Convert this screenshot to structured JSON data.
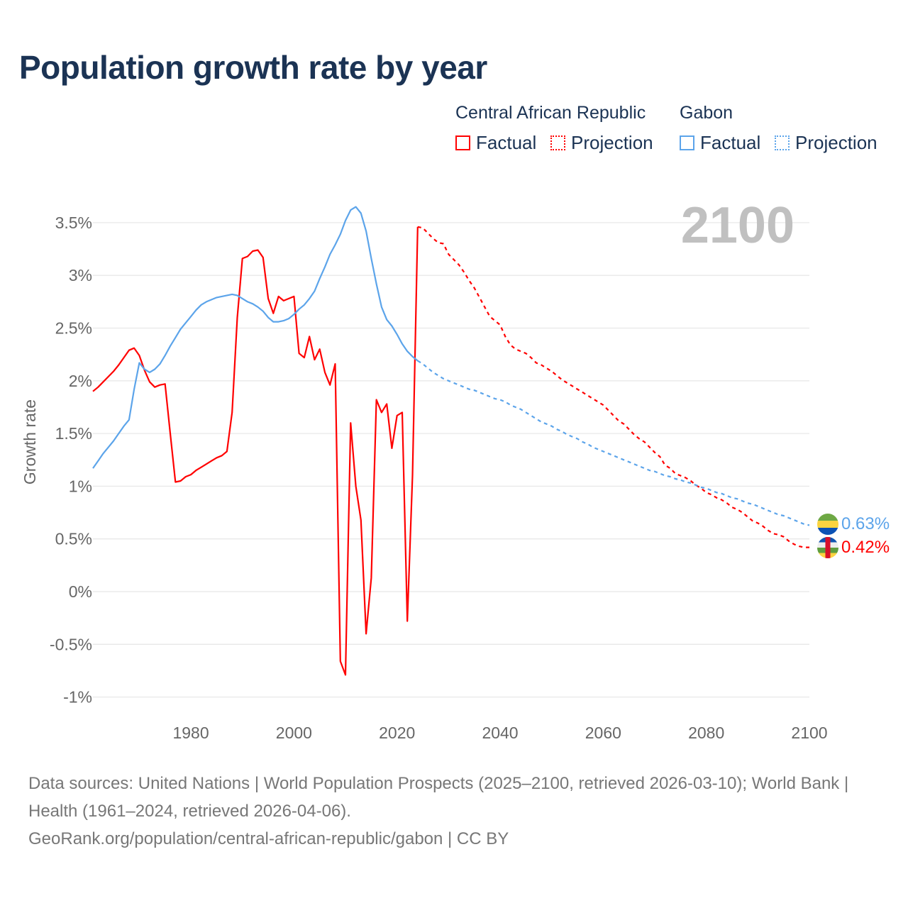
{
  "title": "Population growth rate by year",
  "legend": {
    "countries": [
      {
        "name": "Central African Republic",
        "color": "#ff0000",
        "factual_label": "Factual",
        "projection_label": "Projection"
      },
      {
        "name": "Gabon",
        "color": "#5ca4ea",
        "factual_label": "Factual",
        "projection_label": "Projection"
      }
    ]
  },
  "year_label": "2100",
  "footer": {
    "sources": "Data sources: United Nations | World Population Prospects (2025–2100, retrieved 2026-03-10); World Bank | Health (1961–2024, retrieved 2026-04-06).",
    "attribution": "GeoRank.org/population/central-african-republic/gabon | CC BY"
  },
  "chart_data": {
    "type": "line",
    "title": "Population growth rate by year",
    "xlabel": "",
    "ylabel": "Growth rate",
    "xlim": [
      1961,
      2100
    ],
    "ylim": [
      -1.2,
      3.8
    ],
    "x_ticks": [
      1980,
      2000,
      2020,
      2040,
      2060,
      2080,
      2100
    ],
    "x_tick_labels": [
      "1980",
      "2000",
      "2020",
      "2040",
      "2060",
      "2080",
      "2100"
    ],
    "y_ticks": [
      -1,
      -0.5,
      0,
      0.5,
      1,
      1.5,
      2,
      2.5,
      3,
      3.5
    ],
    "y_tick_labels": [
      "-1%",
      "-0.5%",
      "0%",
      "0.5%",
      "1%",
      "1.5%",
      "2%",
      "2.5%",
      "3%",
      "3.5%"
    ],
    "grid": true,
    "legend_position": "top-right",
    "series": [
      {
        "name": "Central African Republic",
        "kind": "Factual",
        "style": "solid",
        "color": "#ff0000",
        "start_year": 1961,
        "values": [
          1.9,
          1.94,
          1.99,
          2.04,
          2.09,
          2.15,
          2.22,
          2.29,
          2.31,
          2.24,
          2.1,
          1.99,
          1.94,
          1.96,
          1.97,
          1.5,
          1.04,
          1.05,
          1.09,
          1.11,
          1.15,
          1.18,
          1.21,
          1.24,
          1.27,
          1.29,
          1.33,
          1.7,
          2.6,
          3.16,
          3.18,
          3.23,
          3.24,
          3.17,
          2.78,
          2.64,
          2.8,
          2.76,
          2.78,
          2.8,
          2.26,
          2.22,
          2.42,
          2.2,
          2.3,
          2.08,
          1.96,
          2.16,
          -0.66,
          -0.79,
          1.6,
          1.0,
          0.68,
          -0.4,
          0.13,
          1.82,
          1.7,
          1.78,
          1.36,
          1.67,
          1.7,
          -0.28,
          1.1,
          3.46
        ]
      },
      {
        "name": "Central African Republic",
        "kind": "Projection",
        "style": "dotted",
        "color": "#ff0000",
        "start_year": 2024,
        "values": [
          3.46,
          3.45,
          3.4,
          3.35,
          3.31,
          3.3,
          3.2,
          3.15,
          3.1,
          3.03,
          2.95,
          2.88,
          2.79,
          2.7,
          2.61,
          2.57,
          2.53,
          2.42,
          2.34,
          2.3,
          2.28,
          2.26,
          2.22,
          2.17,
          2.15,
          2.12,
          2.09,
          2.05,
          2.01,
          1.98,
          1.95,
          1.92,
          1.89,
          1.86,
          1.83,
          1.8,
          1.77,
          1.72,
          1.67,
          1.62,
          1.59,
          1.54,
          1.49,
          1.45,
          1.42,
          1.37,
          1.32,
          1.28,
          1.2,
          1.17,
          1.12,
          1.1,
          1.08,
          1.05,
          1.01,
          0.98,
          0.94,
          0.92,
          0.89,
          0.87,
          0.84,
          0.8,
          0.78,
          0.75,
          0.71,
          0.67,
          0.65,
          0.62,
          0.58,
          0.55,
          0.54,
          0.52,
          0.48,
          0.45,
          0.43,
          0.42,
          0.42
        ]
      },
      {
        "name": "Gabon",
        "kind": "Factual",
        "style": "solid",
        "color": "#5ca4ea",
        "start_year": 1961,
        "values": [
          1.17,
          1.24,
          1.31,
          1.37,
          1.43,
          1.5,
          1.57,
          1.63,
          1.92,
          2.17,
          2.11,
          2.08,
          2.11,
          2.16,
          2.24,
          2.33,
          2.41,
          2.49,
          2.55,
          2.61,
          2.67,
          2.72,
          2.75,
          2.77,
          2.79,
          2.8,
          2.81,
          2.82,
          2.81,
          2.78,
          2.75,
          2.73,
          2.7,
          2.66,
          2.6,
          2.56,
          2.56,
          2.57,
          2.59,
          2.63,
          2.68,
          2.72,
          2.78,
          2.85,
          2.97,
          3.08,
          3.2,
          3.29,
          3.39,
          3.52,
          3.62,
          3.65,
          3.59,
          3.42,
          3.16,
          2.92,
          2.7,
          2.58,
          2.52,
          2.44,
          2.35,
          2.28,
          2.23,
          2.19
        ]
      },
      {
        "name": "Gabon",
        "kind": "Projection",
        "style": "dotted",
        "color": "#5ca4ea",
        "start_year": 2024,
        "values": [
          2.19,
          2.16,
          2.12,
          2.08,
          2.05,
          2.02,
          2.0,
          1.98,
          1.96,
          1.94,
          1.92,
          1.91,
          1.89,
          1.87,
          1.85,
          1.83,
          1.82,
          1.8,
          1.77,
          1.75,
          1.73,
          1.7,
          1.67,
          1.64,
          1.61,
          1.59,
          1.57,
          1.54,
          1.52,
          1.49,
          1.47,
          1.45,
          1.42,
          1.4,
          1.37,
          1.35,
          1.33,
          1.31,
          1.29,
          1.27,
          1.25,
          1.23,
          1.21,
          1.19,
          1.17,
          1.15,
          1.14,
          1.12,
          1.1,
          1.09,
          1.07,
          1.06,
          1.04,
          1.03,
          1.01,
          0.99,
          0.98,
          0.96,
          0.94,
          0.93,
          0.91,
          0.89,
          0.88,
          0.86,
          0.84,
          0.83,
          0.81,
          0.79,
          0.77,
          0.75,
          0.73,
          0.72,
          0.7,
          0.68,
          0.66,
          0.64,
          0.63
        ]
      }
    ],
    "end_labels": [
      {
        "country": "Gabon",
        "label": "0.63%",
        "color": "#5ca4ea"
      },
      {
        "country": "Central African Republic",
        "label": "0.42%",
        "color": "#ff0000"
      }
    ]
  }
}
